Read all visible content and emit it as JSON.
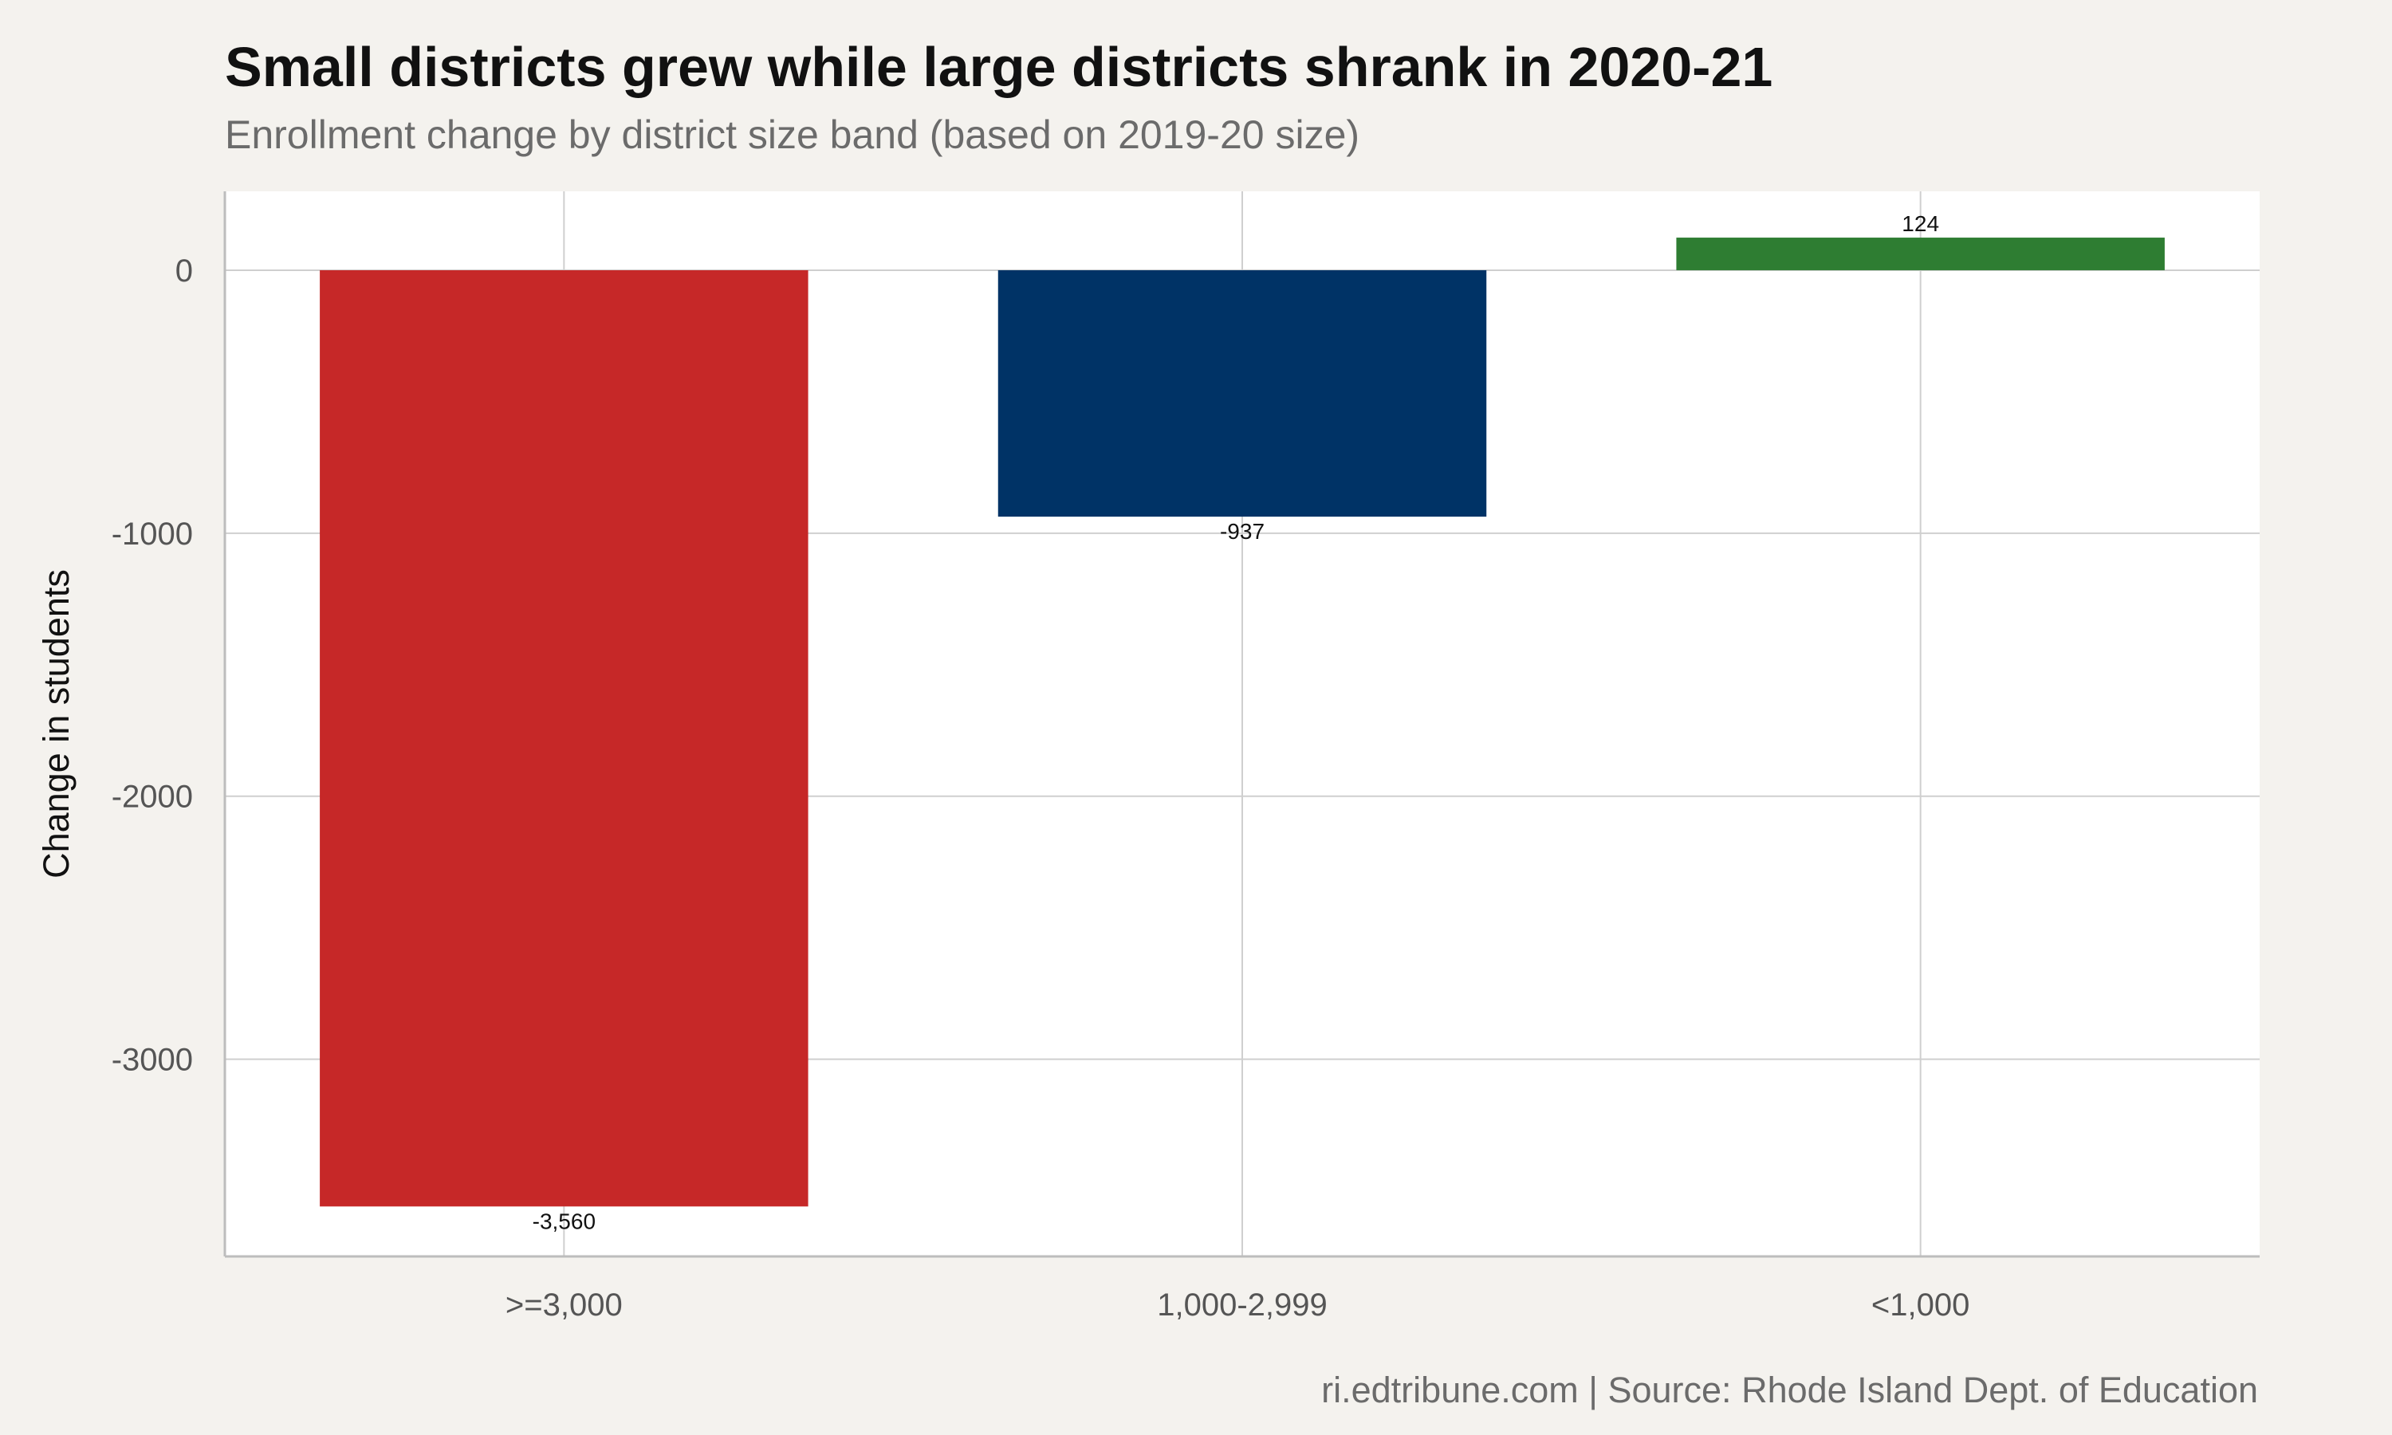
{
  "chart_data": {
    "type": "bar",
    "title": "Small districts grew while large districts shrank in 2020-21",
    "subtitle": "Enrollment change by district size band (based on 2019-20 size)",
    "ylabel": "Change in students",
    "xlabel": "",
    "categories": [
      ">=3,000",
      "1,000-2,999",
      "<1,000"
    ],
    "values": [
      -3560,
      -937,
      124
    ],
    "value_labels": [
      "-3,560",
      "-937",
      "124"
    ],
    "colors": [
      "#c62828",
      "#003366",
      "#2e7d32"
    ],
    "yticks": [
      0,
      -1000,
      -2000,
      -3000
    ],
    "ytick_labels": [
      "0",
      "-1000",
      "-2000",
      "-3000"
    ],
    "ylim": [
      -3750,
      300
    ],
    "grid": true,
    "legend": "none",
    "caption": "ri.edtribune.com | Source: Rhode Island Dept. of Education"
  }
}
